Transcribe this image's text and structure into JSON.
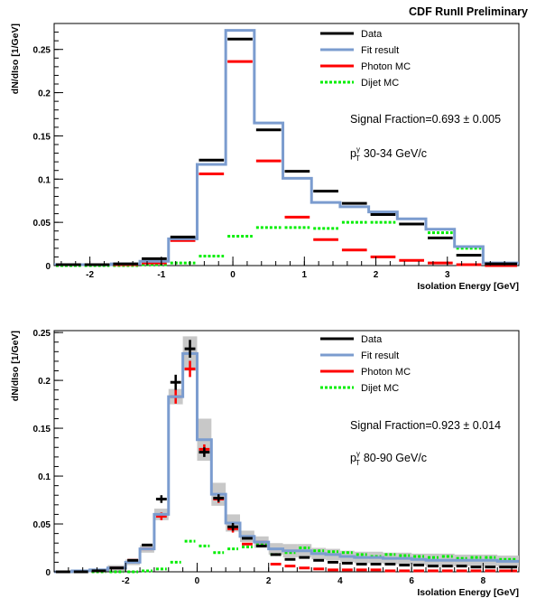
{
  "header": {
    "title": "CDF RunII Preliminary"
  },
  "colors": {
    "data": "#000000",
    "fit": "#7b9ccf",
    "photon": "#ff0000",
    "dijet": "#00ee00",
    "band": "#c8c8c8"
  },
  "chart_data": [
    {
      "type": "line",
      "xlabel": "Isolation Energy [GeV]",
      "ylabel": "dN/dIso [1/GeV]",
      "xlim": [
        -2.5,
        4.0
      ],
      "ylim": [
        0,
        0.28
      ],
      "xticks": [
        -2,
        -1,
        0,
        1,
        2,
        3
      ],
      "xtick_labels": [
        "-2",
        "-1",
        "0",
        "1",
        "2",
        "3"
      ],
      "yticks": [
        0,
        0.05,
        0.1,
        0.15,
        0.2,
        0.25
      ],
      "ytick_labels": [
        "0",
        "0.05",
        "0.1",
        "0.15",
        "0.2",
        "0.25"
      ],
      "legend": {
        "position": "top-right",
        "entries": [
          "Data",
          "Fit result",
          "Photon MC",
          "Dijet MC"
        ]
      },
      "annotations": {
        "signal_fraction": "Signal Fraction=0.693 ± 0.005",
        "pt_prefix": "p",
        "pt_sup": "γ",
        "pt_sub": "T",
        "pt_range": "30-34 GeV/c"
      },
      "bin_edges": [
        -2.5,
        -2.1,
        -1.7,
        -1.3,
        -0.9,
        -0.5,
        -0.1,
        0.3,
        0.7,
        1.1,
        1.5,
        1.9,
        2.3,
        2.7,
        3.1,
        3.5,
        4.0
      ],
      "series": [
        {
          "name": "Data",
          "style": "data",
          "values": [
            0.001,
            0.001,
            0.002,
            0.008,
            0.033,
            0.122,
            0.262,
            0.157,
            0.109,
            0.086,
            0.072,
            0.059,
            0.048,
            0.032,
            0.012,
            0.002
          ]
        },
        {
          "name": "Fit result",
          "style": "fit",
          "values": [
            0.001,
            0.001,
            0.002,
            0.005,
            0.031,
            0.117,
            0.272,
            0.165,
            0.101,
            0.073,
            0.068,
            0.062,
            0.054,
            0.042,
            0.022,
            0.003
          ]
        },
        {
          "name": "Photon MC",
          "style": "photon",
          "values": [
            0.001,
            0.001,
            0.001,
            0.003,
            0.029,
            0.106,
            0.236,
            0.121,
            0.056,
            0.03,
            0.018,
            0.01,
            0.006,
            0.003,
            0.001,
            0.0
          ]
        },
        {
          "name": "Dijet MC",
          "style": "dijet",
          "values": [
            0,
            0,
            0,
            0.001,
            0.003,
            0.011,
            0.034,
            0.044,
            0.044,
            0.043,
            0.05,
            0.05,
            0.048,
            0.038,
            0.02,
            0.002
          ]
        }
      ]
    },
    {
      "type": "line",
      "xlabel": "Isolation Energy [GeV]",
      "ylabel": "dN/dIso [1/GeV]",
      "xlim": [
        -4.0,
        9.0
      ],
      "ylim": [
        0,
        0.252
      ],
      "xticks": [
        -2,
        0,
        2,
        4,
        6,
        8
      ],
      "xtick_labels": [
        "-2",
        "0",
        "2",
        "4",
        "6",
        "8"
      ],
      "yticks": [
        0,
        0.05,
        0.1,
        0.15,
        0.2,
        0.25
      ],
      "ytick_labels": [
        "0",
        "0.05",
        "0.1",
        "0.15",
        "0.2",
        "0.25"
      ],
      "legend": {
        "position": "top-right",
        "entries": [
          "Data",
          "Fit result",
          "Photon MC",
          "Dijet MC"
        ]
      },
      "annotations": {
        "signal_fraction": "Signal Fraction=0.923 ± 0.014",
        "pt_prefix": "p",
        "pt_sup": "γ",
        "pt_sub": "T",
        "pt_range": "80-90 GeV/c"
      },
      "bin_edges": [
        -4.0,
        -3.5,
        -3.0,
        -2.5,
        -2.0,
        -1.6,
        -1.2,
        -0.8,
        -0.4,
        0.0,
        0.4,
        0.8,
        1.2,
        1.6,
        2.0,
        2.4,
        2.8,
        3.2,
        3.6,
        4.0,
        4.4,
        4.8,
        5.2,
        5.6,
        6.0,
        6.4,
        6.8,
        7.2,
        7.6,
        8.0,
        8.4,
        9.0
      ],
      "series": [
        {
          "name": "Data",
          "style": "data",
          "errors": true,
          "values": [
            0.0,
            0.0,
            0.001,
            0.004,
            0.012,
            0.028,
            0.076,
            0.198,
            0.233,
            0.125,
            0.077,
            0.047,
            0.035,
            0.027,
            0.018,
            0.013,
            0.015,
            0.012,
            0.01,
            0.009,
            0.008,
            0.008,
            0.008,
            0.007,
            0.007,
            0.006,
            0.006,
            0.006,
            0.005,
            0.005,
            0.005
          ]
        },
        {
          "name": "Fit result",
          "style": "fit",
          "band": [
            0.0,
            0.001,
            0.001,
            0.003,
            0.003,
            0.004,
            0.006,
            0.008,
            0.018,
            0.022,
            0.012,
            0.009,
            0.006,
            0.006,
            0.006,
            0.007,
            0.007,
            0.006,
            0.006,
            0.006,
            0.006,
            0.006,
            0.006,
            0.006,
            0.006,
            0.007,
            0.007,
            0.006,
            0.006,
            0.006,
            0.006
          ],
          "values": [
            0.0,
            0.001,
            0.002,
            0.004,
            0.01,
            0.024,
            0.06,
            0.183,
            0.228,
            0.138,
            0.081,
            0.051,
            0.037,
            0.031,
            0.024,
            0.022,
            0.022,
            0.019,
            0.018,
            0.016,
            0.015,
            0.015,
            0.014,
            0.014,
            0.013,
            0.012,
            0.012,
            0.012,
            0.012,
            0.012,
            0.011
          ]
        },
        {
          "name": "Photon MC",
          "style": "photon",
          "errors": true,
          "values": [
            0.0,
            0.0,
            0.001,
            0.004,
            0.012,
            0.024,
            0.058,
            0.183,
            0.212,
            0.128,
            0.076,
            0.045,
            0.029,
            0.031,
            0.008,
            0.006,
            0.004,
            0.003,
            0.002,
            0.002,
            0.002,
            0.002,
            0.001,
            0.001,
            0.001,
            0.001,
            0.001,
            0.001,
            0.001,
            0.001,
            0.001
          ]
        },
        {
          "name": "Dijet MC",
          "style": "dijet",
          "values": [
            0,
            0,
            0,
            0,
            0,
            0.001,
            0.003,
            0.01,
            0.032,
            0.027,
            0.02,
            0.024,
            0.026,
            0.029,
            0.018,
            0.02,
            0.025,
            0.022,
            0.021,
            0.02,
            0.018,
            0.016,
            0.018,
            0.017,
            0.016,
            0.015,
            0.016,
            0.014,
            0.015,
            0.015,
            0.013
          ]
        }
      ]
    }
  ]
}
